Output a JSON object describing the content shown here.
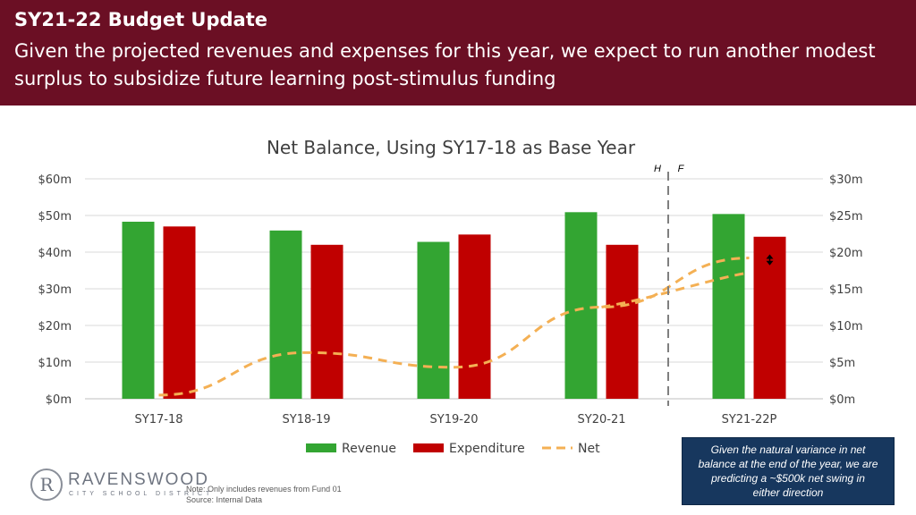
{
  "header": {
    "title": "SY21-22 Budget Update",
    "subtitle": "Given the projected revenues and expenses for this year, we expect to run another modest surplus to subsidize future learning post-stimulus funding"
  },
  "chart_data": {
    "type": "bar",
    "title": "Net Balance, Using SY17-18 as Base Year",
    "categories": [
      "SY17-18",
      "SY18-19",
      "SY19-20",
      "SY20-21",
      "SY21-22P"
    ],
    "y_left": {
      "ticks": [
        "$0m",
        "$10m",
        "$20m",
        "$30m",
        "$40m",
        "$50m",
        "$60m"
      ],
      "range": [
        0,
        60
      ]
    },
    "y_right": {
      "ticks": [
        "$0m",
        "$5m",
        "$10m",
        "$15m",
        "$20m",
        "$25m",
        "$30m"
      ],
      "range": [
        0,
        30
      ]
    },
    "series": [
      {
        "name": "Revenue",
        "type": "bar",
        "axis": "left",
        "color": "#33a532",
        "values": [
          48.3,
          45.9,
          42.8,
          50.9,
          50.4
        ]
      },
      {
        "name": "Expenditure",
        "type": "bar",
        "axis": "left",
        "color": "#c00000",
        "values": [
          47.0,
          42.0,
          44.8,
          42.0,
          44.2
        ]
      },
      {
        "name": "Net",
        "type": "line",
        "style": "dashed",
        "axis": "right",
        "color": "#f4b054",
        "values": [
          0.5,
          6.3,
          4.3,
          12.5,
          19.2
        ],
        "alt_last_value": 17.2
      }
    ],
    "annotations": {
      "historical_label": "H",
      "forecast_label": "F"
    },
    "legend_position": "bottom",
    "grid": true
  },
  "callout": {
    "lines": [
      "Given the natural variance in net",
      "balance at the end of the year, we are",
      "predicting a ~$500k net swing in",
      "either direction"
    ]
  },
  "logo": {
    "mark": "R",
    "name": "RAVENSWOOD",
    "sub": "CITY SCHOOL DISTRICT"
  },
  "footnote": {
    "note": "Note: Only includes revenues from Fund 01",
    "source": "Source: Internal Data"
  }
}
